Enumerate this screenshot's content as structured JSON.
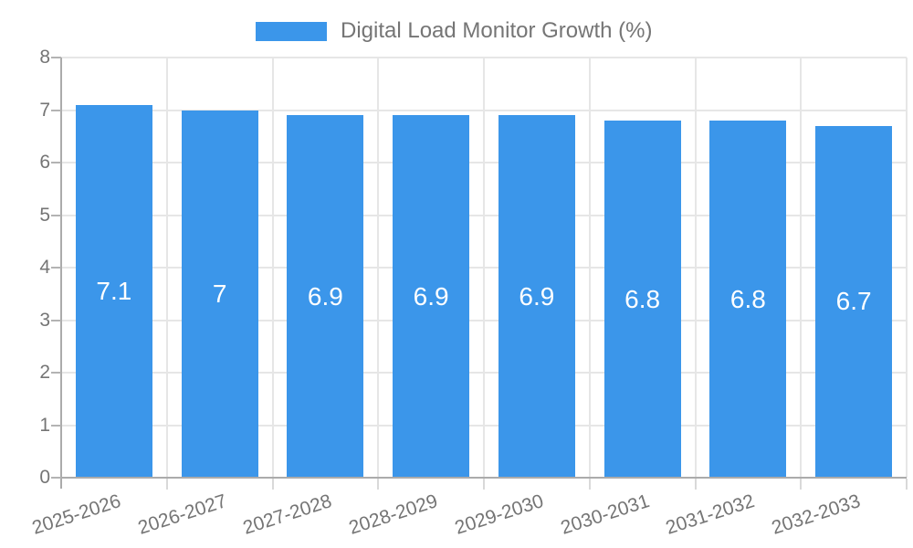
{
  "legend": {
    "label": "Digital Load Monitor Growth (%)"
  },
  "colors": {
    "bar": "#3b96ea",
    "grid": "#e6e6e6",
    "axis": "#ababab",
    "y_tick_mark": "#b3b3b3",
    "x_tick_mark": "#d9d9d9",
    "tick_label": "#757575",
    "legend_text": "#757575",
    "value_label": "#ffffff",
    "background": "#ffffff"
  },
  "chart_data": {
    "type": "bar",
    "title": "Digital Load Monitor Growth (%)",
    "categories": [
      "2025-2026",
      "2026-2027",
      "2027-2028",
      "2028-2029",
      "2029-2030",
      "2030-2031",
      "2031-2032",
      "2032-2033"
    ],
    "series": [
      {
        "name": "Digital Load Monitor Growth (%)",
        "color": "#3b96ea",
        "values": [
          7.1,
          7.0,
          6.9,
          6.9,
          6.9,
          6.8,
          6.8,
          6.7
        ]
      }
    ],
    "value_labels": [
      "7.1",
      "7",
      "6.9",
      "6.9",
      "6.9",
      "6.8",
      "6.8",
      "6.7"
    ],
    "xlabel": "",
    "ylabel": "",
    "ylim": [
      0,
      8
    ],
    "yticks": [
      0,
      1,
      2,
      3,
      4,
      5,
      6,
      7,
      8
    ],
    "grid": true,
    "legend_position": "top-center",
    "x_tick_rotation_deg": -18
  }
}
